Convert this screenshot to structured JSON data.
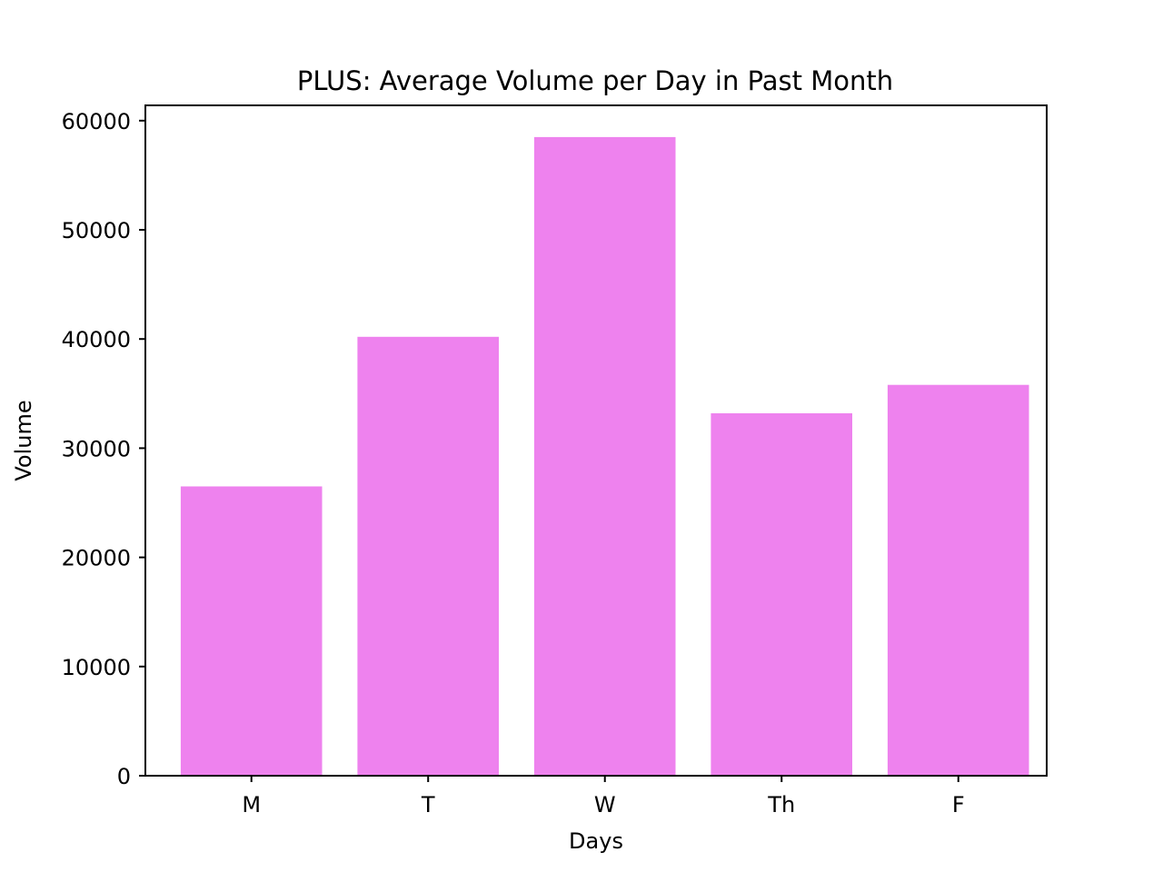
{
  "chart_data": {
    "type": "bar",
    "title": "PLUS: Average Volume per Day in Past Month",
    "xlabel": "Days",
    "ylabel": "Volume",
    "categories": [
      "M",
      "T",
      "W",
      "Th",
      "F"
    ],
    "values": [
      26500,
      40200,
      58500,
      33200,
      35800
    ],
    "ylim": [
      0,
      61400
    ],
    "yticks": [
      0,
      10000,
      20000,
      30000,
      40000,
      50000,
      60000
    ],
    "ytick_labels": [
      "0",
      "10000",
      "20000",
      "30000",
      "40000",
      "50000",
      "60000"
    ],
    "grid": false,
    "legend": "none",
    "colors": {
      "bar": "#ee82ee",
      "axis": "#000000",
      "background": "#ffffff"
    }
  }
}
